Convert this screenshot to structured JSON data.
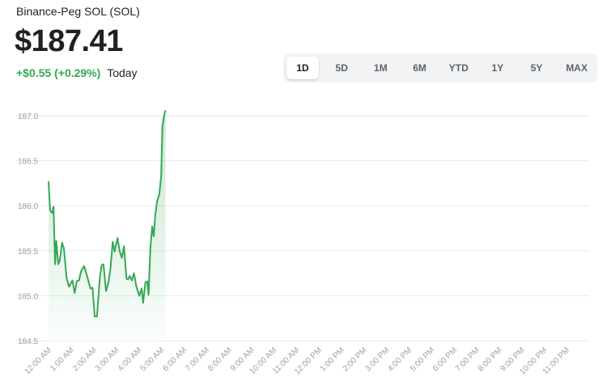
{
  "header": {
    "asset_name": "Binance-Peg SOL (SOL)",
    "price": "$187.41",
    "change": "+$0.55 (+0.29%)",
    "period_label": "Today"
  },
  "ranges": {
    "items": [
      "1D",
      "5D",
      "1M",
      "6M",
      "YTD",
      "1Y",
      "5Y",
      "MAX"
    ],
    "selected": "1D"
  },
  "colors": {
    "line": "#34a853",
    "grid": "#e8eaed",
    "tick": "#9aa0a6"
  },
  "chart_data": {
    "type": "area",
    "ylim": [
      184.5,
      187.0
    ],
    "y_ticks": [
      "187.0",
      "186.5",
      "186.0",
      "185.5",
      "185.0",
      "184.5"
    ],
    "x_ticks": [
      "12:00 AM",
      "1:00 AM",
      "2:00 AM",
      "3:00 AM",
      "4:00 AM",
      "5:00 AM",
      "6:00 AM",
      "7:00 AM",
      "8:00 AM",
      "9:00 AM",
      "10:00 AM",
      "11:00 AM",
      "12:00 PM",
      "1:00 PM",
      "2:00 PM",
      "3:00 PM",
      "4:00 PM",
      "5:00 PM",
      "6:00 PM",
      "7:00 PM",
      "8:00 PM",
      "9:00 PM",
      "10:00 PM",
      "11:00 PM"
    ],
    "series": [
      {
        "x_hours": [
          0,
          0.07,
          0.16,
          0.22,
          0.29,
          0.34,
          0.43,
          0.5,
          0.6,
          0.68,
          0.8,
          0.91,
          1.06,
          1.16,
          1.25,
          1.35,
          1.44,
          1.58,
          1.73,
          1.86,
          1.95,
          2.05,
          2.15,
          2.28,
          2.36,
          2.44,
          2.55,
          2.65,
          2.75,
          2.85,
          2.93,
          3.06,
          3.16,
          3.25,
          3.35,
          3.46,
          3.53,
          3.6,
          3.7,
          3.79,
          3.9,
          4.03,
          4.13,
          4.2,
          4.3,
          4.38,
          4.44,
          4.52,
          4.6,
          4.67,
          4.74,
          4.82,
          4.92,
          5.0,
          5.05,
          5.12,
          5.19
        ],
        "y": [
          186.27,
          185.95,
          185.92,
          185.99,
          185.35,
          185.61,
          185.35,
          185.39,
          185.59,
          185.53,
          185.2,
          185.1,
          185.17,
          185.03,
          185.16,
          185.17,
          185.27,
          185.33,
          185.2,
          185.08,
          185.09,
          184.77,
          184.77,
          185.21,
          185.34,
          185.35,
          185.05,
          185.14,
          185.3,
          185.6,
          185.49,
          185.64,
          185.49,
          185.42,
          185.55,
          185.19,
          185.18,
          185.22,
          185.17,
          185.25,
          185.1,
          185.0,
          185.08,
          184.92,
          185.15,
          185.16,
          185.01,
          185.52,
          185.77,
          185.66,
          185.9,
          186.05,
          186.13,
          186.33,
          186.87,
          186.99,
          187.06
        ]
      }
    ]
  }
}
